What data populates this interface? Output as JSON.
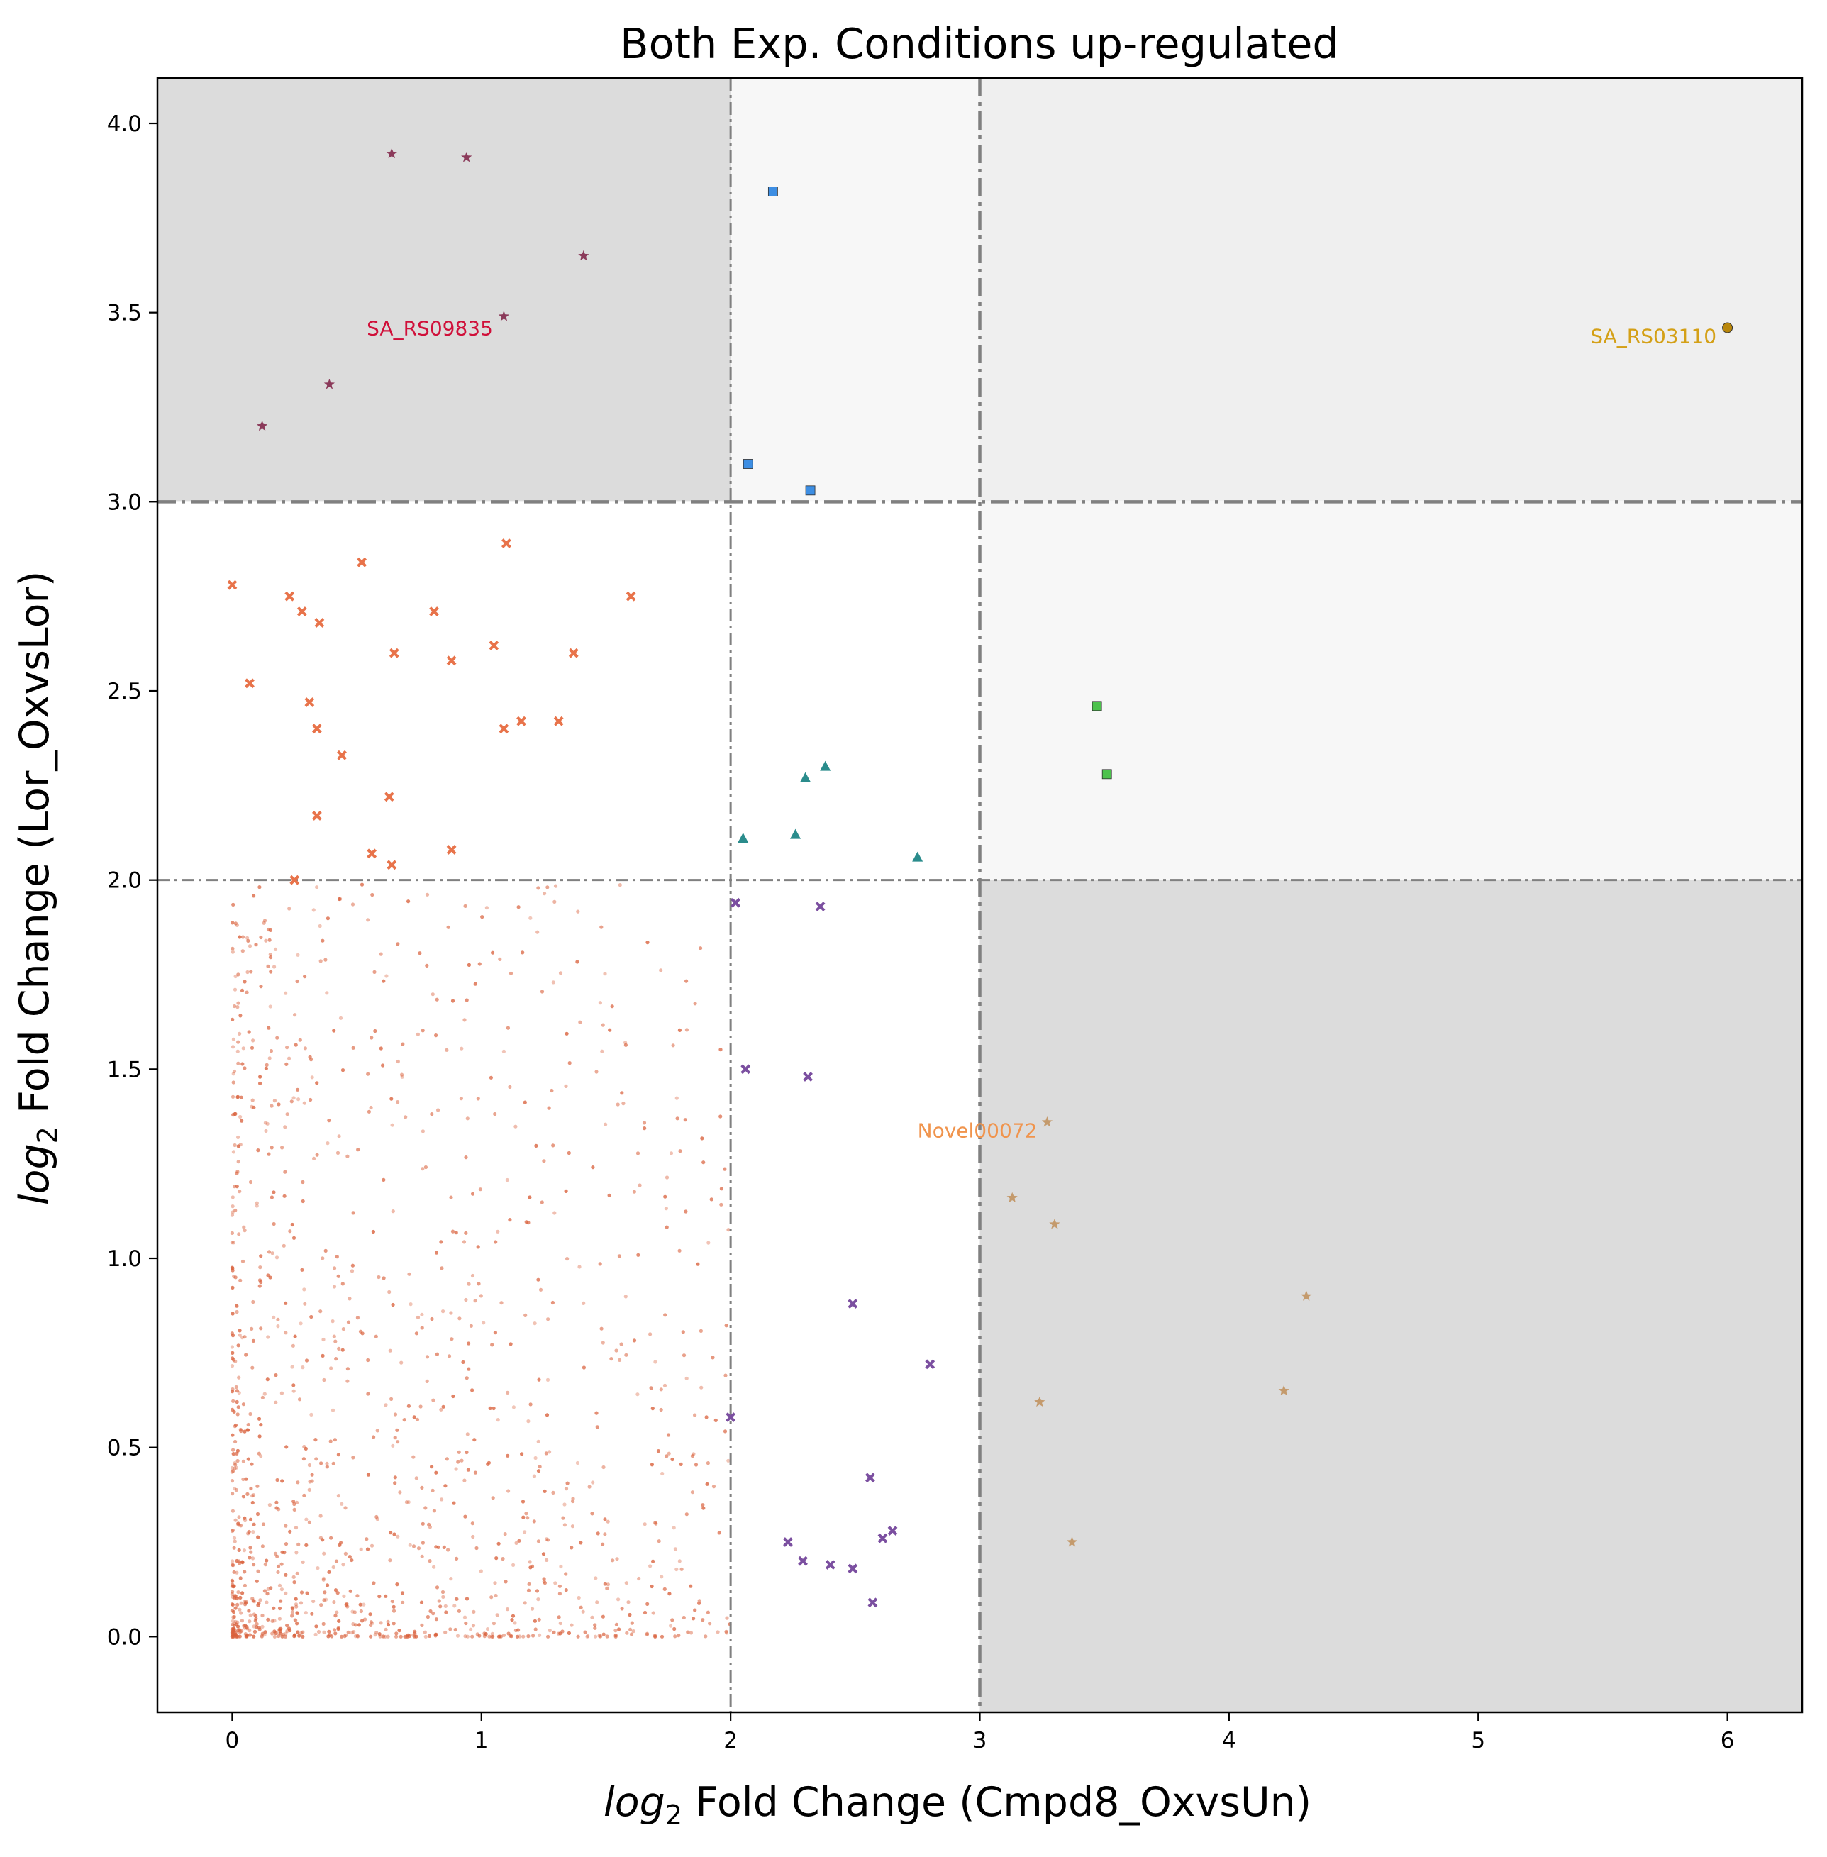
{
  "chart_data": {
    "type": "scatter",
    "title": "Both Exp. Conditions up-regulated",
    "xlabel_italic": "log",
    "xlabel_sub": "2",
    "xlabel_rest": " Fold Change (Cmpd8_OxvsUn)",
    "ylabel_italic": "log",
    "ylabel_sub": "2",
    "ylabel_rest": " Fold Change (Lor_OxvsLor)",
    "xlim": [
      -0.3,
      6.3
    ],
    "ylim": [
      -0.2,
      4.12
    ],
    "xticks": [
      0,
      1,
      2,
      3,
      4,
      5,
      6
    ],
    "xtick_labels": [
      "0",
      "1",
      "2",
      "3",
      "4",
      "5",
      "6"
    ],
    "yticks": [
      0,
      0.5,
      1,
      1.5,
      2,
      2.5,
      3,
      3.5,
      4
    ],
    "ytick_labels": [
      "0.0",
      "0.5",
      "1.0",
      "1.5",
      "2.0",
      "2.5",
      "3.0",
      "3.5",
      "4.0"
    ],
    "grid": false,
    "regions": [
      {
        "x": [
          -0.3,
          2
        ],
        "y": [
          3,
          4.12
        ],
        "color": "#dcdcdc"
      },
      {
        "x": [
          2,
          3
        ],
        "y": [
          3,
          4.12
        ],
        "color": "#f7f7f7"
      },
      {
        "x": [
          3,
          6.3
        ],
        "y": [
          3,
          4.12
        ],
        "color": "#efefef"
      },
      {
        "x": [
          3,
          6.3
        ],
        "y": [
          2,
          3
        ],
        "color": "#f7f7f7"
      },
      {
        "x": [
          3,
          6.3
        ],
        "y": [
          -0.2,
          2
        ],
        "color": "#dcdcdc"
      }
    ],
    "threshold_lines": [
      {
        "orientation": "v",
        "value": 2,
        "thick": false
      },
      {
        "orientation": "v",
        "value": 3,
        "thick": true
      },
      {
        "orientation": "h",
        "value": 2,
        "thick": false
      },
      {
        "orientation": "h",
        "value": 3,
        "thick": true
      }
    ],
    "line_color": "#808080",
    "series": [
      {
        "marker": "star",
        "color": "#8b3a5a",
        "points": [
          [
            0.64,
            3.92
          ],
          [
            0.94,
            3.91
          ],
          [
            1.41,
            3.65
          ],
          [
            1.09,
            3.49
          ],
          [
            0.39,
            3.31
          ],
          [
            0.12,
            3.2
          ]
        ]
      },
      {
        "marker": "square",
        "color": "#3d8ee3",
        "points": [
          [
            2.17,
            3.82
          ],
          [
            2.07,
            3.1
          ],
          [
            2.32,
            3.03
          ]
        ]
      },
      {
        "marker": "circle",
        "color": "#b8860b",
        "points": [
          [
            6.0,
            3.46
          ]
        ]
      },
      {
        "marker": "x",
        "color": "#e8734a",
        "points": [
          [
            0.0,
            2.78
          ],
          [
            0.23,
            2.75
          ],
          [
            0.28,
            2.71
          ],
          [
            0.35,
            2.68
          ],
          [
            0.52,
            2.84
          ],
          [
            0.81,
            2.71
          ],
          [
            1.1,
            2.89
          ],
          [
            1.6,
            2.75
          ],
          [
            0.07,
            2.52
          ],
          [
            0.65,
            2.6
          ],
          [
            0.88,
            2.58
          ],
          [
            1.05,
            2.62
          ],
          [
            1.37,
            2.6
          ],
          [
            0.31,
            2.47
          ],
          [
            0.34,
            2.4
          ],
          [
            0.44,
            2.33
          ],
          [
            1.09,
            2.4
          ],
          [
            1.16,
            2.42
          ],
          [
            1.31,
            2.42
          ],
          [
            0.63,
            2.22
          ],
          [
            0.34,
            2.17
          ],
          [
            0.56,
            2.07
          ],
          [
            0.64,
            2.04
          ],
          [
            0.88,
            2.08
          ],
          [
            0.25,
            2.0
          ]
        ]
      },
      {
        "marker": "triangle",
        "color": "#2a8c8c",
        "points": [
          [
            2.05,
            2.11
          ],
          [
            2.26,
            2.12
          ],
          [
            2.3,
            2.27
          ],
          [
            2.38,
            2.3
          ],
          [
            2.75,
            2.06
          ]
        ]
      },
      {
        "marker": "square",
        "color": "#4cc24c",
        "points": [
          [
            3.47,
            2.46
          ],
          [
            3.51,
            2.28
          ]
        ]
      },
      {
        "marker": "x",
        "color": "#7b4fa0",
        "points": [
          [
            2.02,
            1.94
          ],
          [
            2.36,
            1.93
          ],
          [
            2.06,
            1.5
          ],
          [
            2.31,
            1.48
          ],
          [
            2.49,
            0.88
          ],
          [
            2.8,
            0.72
          ],
          [
            2.0,
            0.58
          ],
          [
            2.56,
            0.42
          ],
          [
            2.23,
            0.25
          ],
          [
            2.29,
            0.2
          ],
          [
            2.4,
            0.19
          ],
          [
            2.49,
            0.18
          ],
          [
            2.61,
            0.26
          ],
          [
            2.65,
            0.28
          ],
          [
            2.57,
            0.09
          ]
        ]
      },
      {
        "marker": "star",
        "color": "#c49a6c",
        "points": [
          [
            3.27,
            1.36
          ],
          [
            3.13,
            1.16
          ],
          [
            3.3,
            1.09
          ],
          [
            4.31,
            0.9
          ],
          [
            4.22,
            0.65
          ],
          [
            3.24,
            0.62
          ],
          [
            3.37,
            0.25
          ]
        ]
      }
    ],
    "background_cloud": {
      "color": "#d9603b",
      "count": 1300,
      "x_range": [
        0,
        2
      ],
      "y_range": [
        0,
        2
      ]
    },
    "annotations": [
      {
        "text": "SA_RS09835",
        "x": 0.54,
        "y": 3.44,
        "color": "#d0103a"
      },
      {
        "text": "SA_RS03110",
        "x": 5.45,
        "y": 3.42,
        "color": "#d4a017"
      },
      {
        "text": "Novel00072",
        "x": 2.75,
        "y": 1.32,
        "color": "#f0944d"
      }
    ]
  }
}
